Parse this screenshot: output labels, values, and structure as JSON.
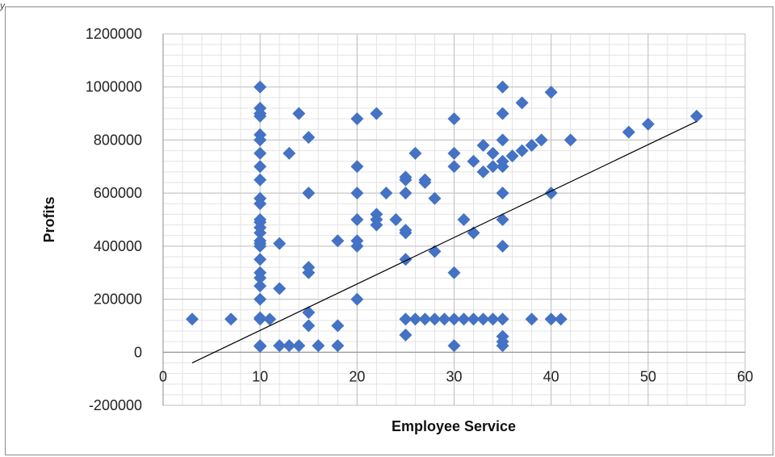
{
  "header": {
    "corner_text": "y"
  },
  "chart_data": {
    "type": "scatter",
    "title": "",
    "xlabel": "Employee Service",
    "ylabel": "Profits",
    "xlim": [
      0,
      60
    ],
    "ylim": [
      -200000,
      1200000
    ],
    "x_ticks": [
      0,
      10,
      20,
      30,
      40,
      50,
      60
    ],
    "y_ticks": [
      -200000,
      0,
      200000,
      400000,
      600000,
      800000,
      1000000,
      1200000
    ],
    "grid": true,
    "marker": "diamond",
    "marker_color": "#4472C4",
    "trendline": {
      "type": "linear",
      "x": [
        3,
        55
      ],
      "y": [
        -40000,
        870000
      ],
      "color": "#000000"
    },
    "series": [
      {
        "points": [
          [
            3,
            125000
          ],
          [
            7,
            125000
          ],
          [
            10,
            1000000
          ],
          [
            10,
            920000
          ],
          [
            10,
            900000
          ],
          [
            10,
            890000
          ],
          [
            10,
            820000
          ],
          [
            10,
            800000
          ],
          [
            10,
            750000
          ],
          [
            10,
            700000
          ],
          [
            10,
            650000
          ],
          [
            10,
            580000
          ],
          [
            10,
            560000
          ],
          [
            10,
            500000
          ],
          [
            10,
            490000
          ],
          [
            10,
            470000
          ],
          [
            10,
            450000
          ],
          [
            10,
            420000
          ],
          [
            10,
            410000
          ],
          [
            10,
            400000
          ],
          [
            10,
            350000
          ],
          [
            10,
            300000
          ],
          [
            10,
            280000
          ],
          [
            10,
            250000
          ],
          [
            10,
            200000
          ],
          [
            10,
            130000
          ],
          [
            10,
            125000
          ],
          [
            10,
            25000
          ],
          [
            10,
            22000
          ],
          [
            11,
            125000
          ],
          [
            12,
            410000
          ],
          [
            12,
            240000
          ],
          [
            12,
            25000
          ],
          [
            13,
            750000
          ],
          [
            13,
            25000
          ],
          [
            14,
            900000
          ],
          [
            14,
            25000
          ],
          [
            15,
            810000
          ],
          [
            15,
            600000
          ],
          [
            15,
            320000
          ],
          [
            15,
            300000
          ],
          [
            15,
            150000
          ],
          [
            15,
            100000
          ],
          [
            16,
            25000
          ],
          [
            18,
            420000
          ],
          [
            18,
            100000
          ],
          [
            18,
            25000
          ],
          [
            20,
            880000
          ],
          [
            20,
            700000
          ],
          [
            20,
            600000
          ],
          [
            20,
            500000
          ],
          [
            20,
            420000
          ],
          [
            20,
            400000
          ],
          [
            20,
            200000
          ],
          [
            22,
            900000
          ],
          [
            22,
            520000
          ],
          [
            22,
            500000
          ],
          [
            22,
            480000
          ],
          [
            23,
            600000
          ],
          [
            24,
            500000
          ],
          [
            25,
            660000
          ],
          [
            25,
            650000
          ],
          [
            25,
            600000
          ],
          [
            25,
            460000
          ],
          [
            25,
            450000
          ],
          [
            25,
            350000
          ],
          [
            25,
            125000
          ],
          [
            25,
            65000
          ],
          [
            26,
            750000
          ],
          [
            26,
            125000
          ],
          [
            27,
            650000
          ],
          [
            27,
            640000
          ],
          [
            27,
            125000
          ],
          [
            28,
            580000
          ],
          [
            28,
            380000
          ],
          [
            28,
            125000
          ],
          [
            29,
            125000
          ],
          [
            30,
            880000
          ],
          [
            30,
            750000
          ],
          [
            30,
            700000
          ],
          [
            30,
            300000
          ],
          [
            30,
            125000
          ],
          [
            30,
            25000
          ],
          [
            31,
            500000
          ],
          [
            31,
            125000
          ],
          [
            32,
            720000
          ],
          [
            32,
            450000
          ],
          [
            32,
            125000
          ],
          [
            33,
            780000
          ],
          [
            33,
            680000
          ],
          [
            33,
            125000
          ],
          [
            34,
            750000
          ],
          [
            34,
            700000
          ],
          [
            34,
            125000
          ],
          [
            35,
            1000000
          ],
          [
            35,
            900000
          ],
          [
            35,
            800000
          ],
          [
            35,
            720000
          ],
          [
            35,
            700000
          ],
          [
            35,
            600000
          ],
          [
            35,
            500000
          ],
          [
            35,
            400000
          ],
          [
            35,
            125000
          ],
          [
            35,
            60000
          ],
          [
            35,
            40000
          ],
          [
            35,
            25000
          ],
          [
            36,
            740000
          ],
          [
            37,
            940000
          ],
          [
            37,
            760000
          ],
          [
            38,
            780000
          ],
          [
            38,
            125000
          ],
          [
            39,
            800000
          ],
          [
            40,
            980000
          ],
          [
            40,
            600000
          ],
          [
            40,
            125000
          ],
          [
            41,
            125000
          ],
          [
            42,
            800000
          ],
          [
            48,
            830000
          ],
          [
            50,
            860000
          ],
          [
            55,
            890000
          ]
        ]
      }
    ]
  }
}
